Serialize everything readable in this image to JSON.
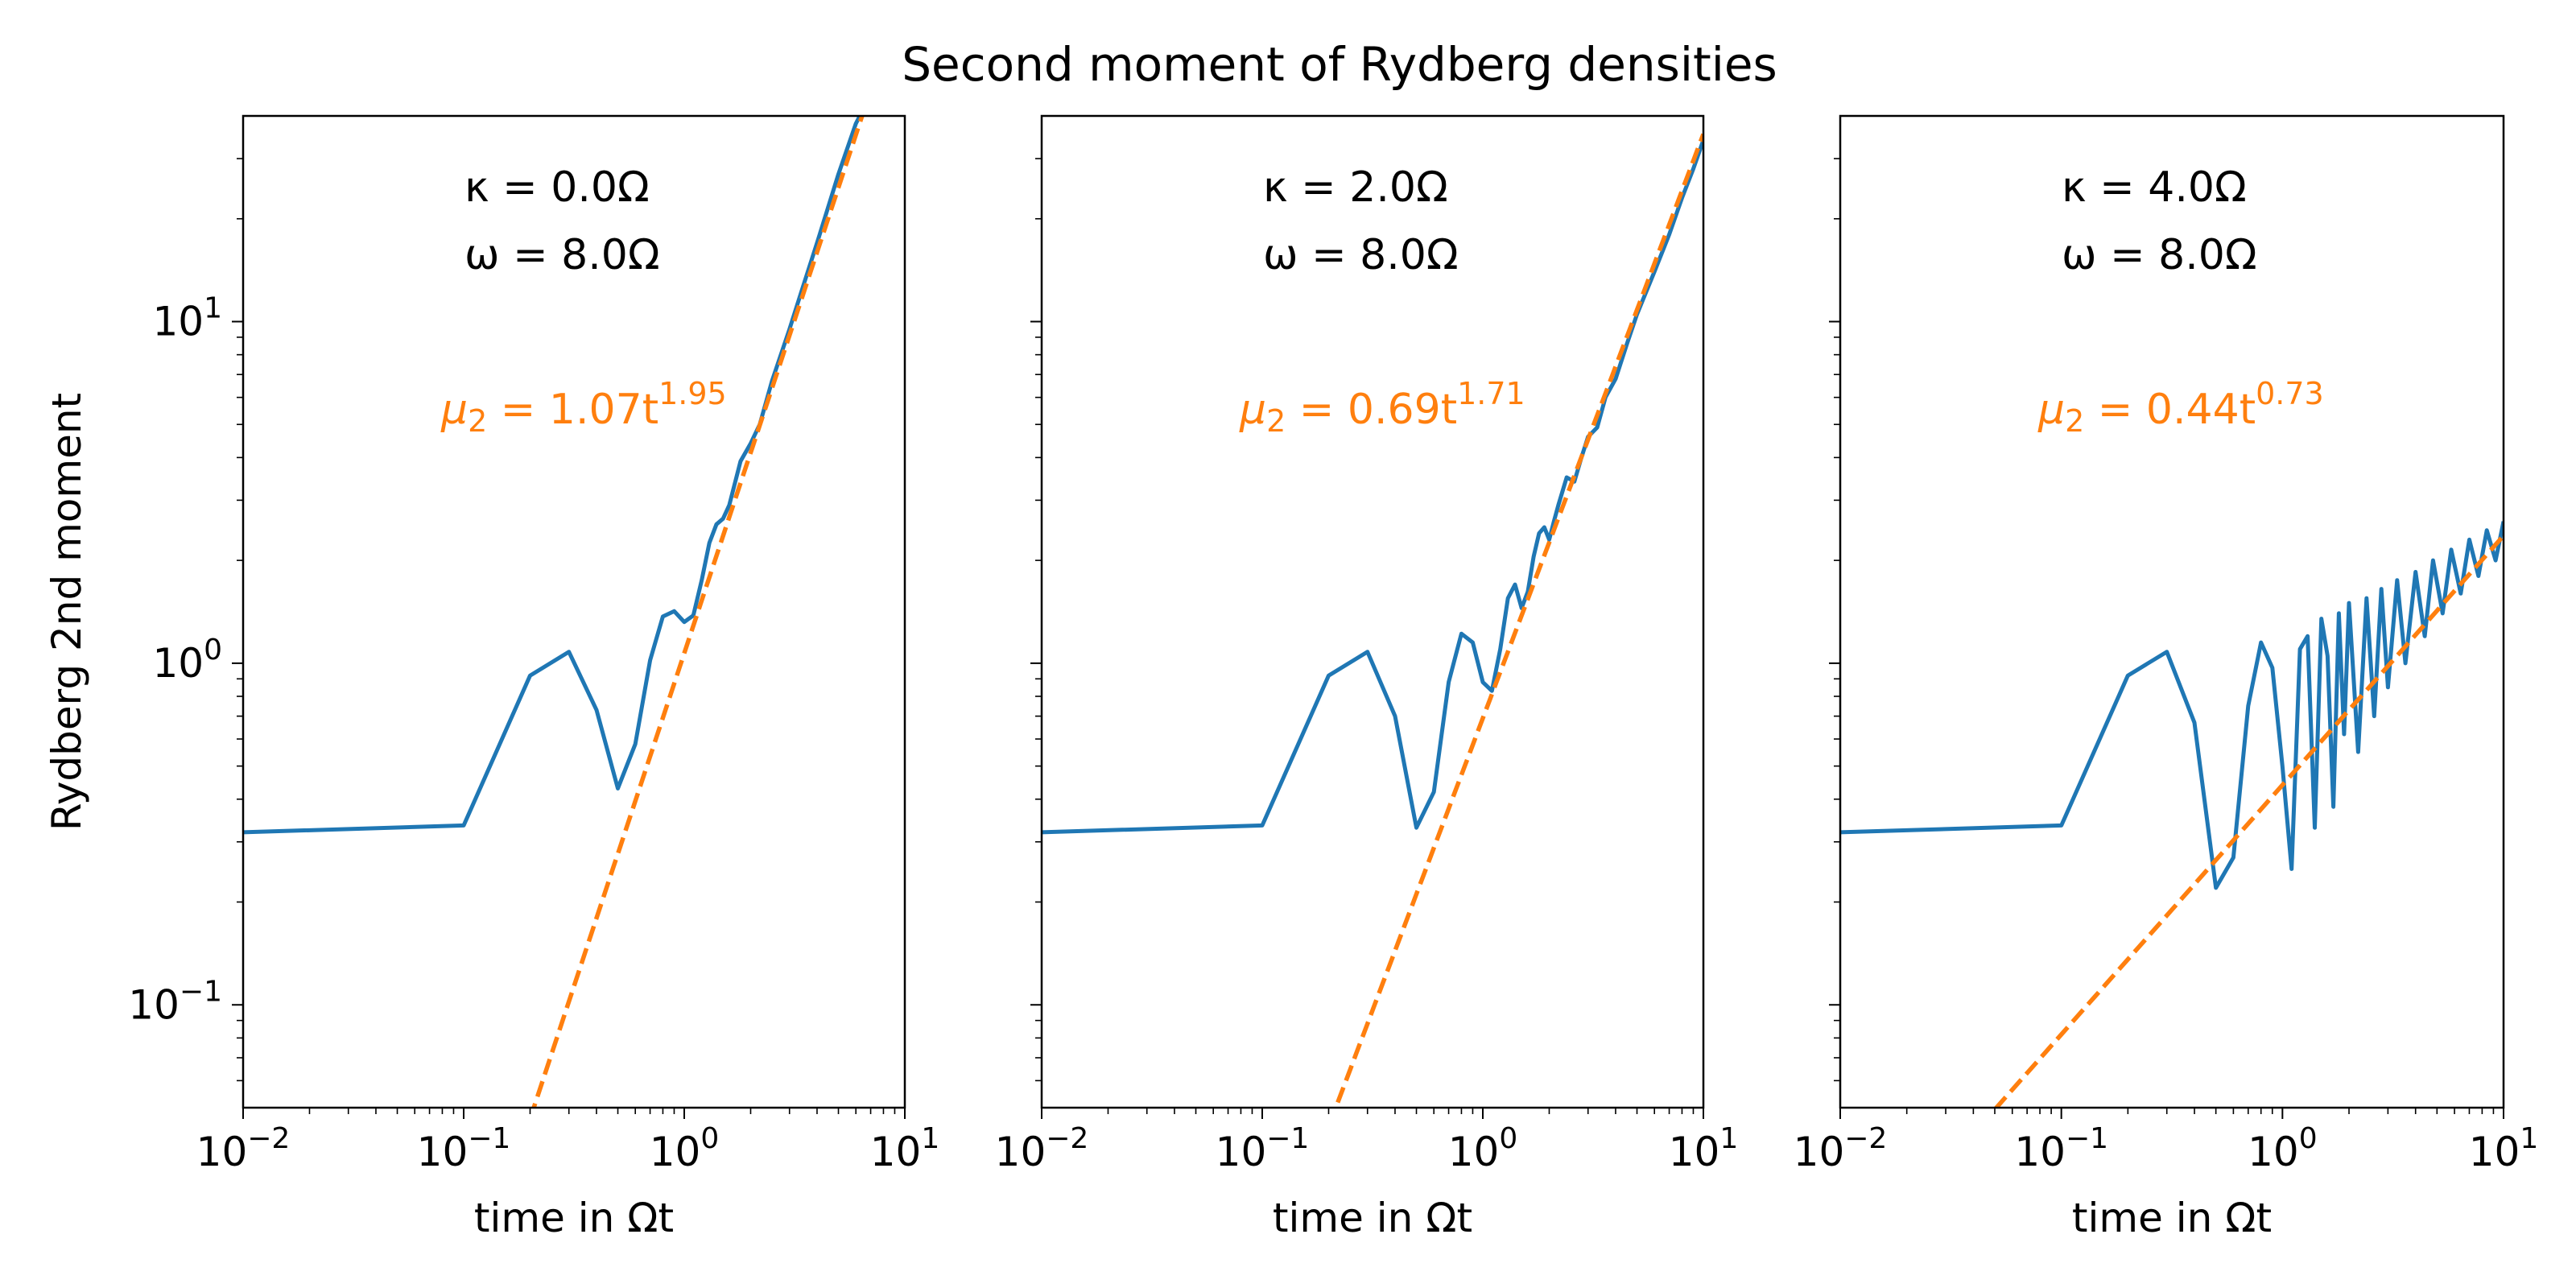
{
  "title": "Second moment of Rydberg densities",
  "colors": {
    "data": "#1f77b4",
    "fit": "#ff7f0e",
    "text": "#000000"
  },
  "chart_data": [
    {
      "type": "line",
      "xscale": "log",
      "yscale": "log",
      "xlim": [
        0.01,
        10
      ],
      "ylim": [
        0.05,
        40
      ],
      "xlabel": "time in Ωt",
      "ylabel": "Rydberg 2nd moment",
      "xticks": [
        {
          "base": "10",
          "exp": "−2"
        },
        {
          "base": "10",
          "exp": "−1"
        },
        {
          "base": "10",
          "exp": "0"
        },
        {
          "base": "10",
          "exp": "1"
        }
      ],
      "yticks": [
        {
          "base": "10",
          "exp": "−1"
        },
        {
          "base": "10",
          "exp": "0"
        },
        {
          "base": "10",
          "exp": "1"
        }
      ],
      "annotation": {
        "kappa": "κ = 0.0Ω",
        "omega": "ω = 8.0Ω"
      },
      "fit": {
        "label_prefix": "μ",
        "label_sub": "2",
        "label_mid": " = 1.07t",
        "label_exp": "1.95",
        "a": 1.07,
        "b": 1.95,
        "x_range": [
          0.2,
          6.5
        ]
      },
      "series": [
        {
          "style": "solid",
          "x": [
            0.01,
            0.1,
            0.2,
            0.3,
            0.4,
            0.5,
            0.6,
            0.7,
            0.8,
            0.9,
            1.0,
            1.1,
            1.2,
            1.3,
            1.4,
            1.5,
            1.6,
            1.8,
            2.0,
            2.2,
            2.5,
            3.0,
            3.5,
            4.0,
            5.0,
            6.0,
            6.5
          ],
          "y": [
            0.32,
            0.335,
            0.92,
            1.08,
            0.73,
            0.43,
            0.58,
            1.02,
            1.37,
            1.42,
            1.32,
            1.38,
            1.75,
            2.25,
            2.55,
            2.65,
            2.9,
            3.9,
            4.4,
            5.0,
            6.7,
            9.5,
            13,
            17,
            27,
            38,
            42
          ]
        }
      ]
    },
    {
      "type": "line",
      "xscale": "log",
      "yscale": "log",
      "xlim": [
        0.01,
        10
      ],
      "ylim": [
        0.05,
        40
      ],
      "xlabel": "time in Ωt",
      "ylabel": "",
      "xticks": [
        {
          "base": "10",
          "exp": "−2"
        },
        {
          "base": "10",
          "exp": "−1"
        },
        {
          "base": "10",
          "exp": "0"
        },
        {
          "base": "10",
          "exp": "1"
        }
      ],
      "yticks": [],
      "annotation": {
        "kappa": "κ = 2.0Ω",
        "omega": "ω = 8.0Ω"
      },
      "fit": {
        "label_prefix": "μ",
        "label_sub": "2",
        "label_mid": " = 0.69t",
        "label_exp": "1.71",
        "a": 0.69,
        "b": 1.71,
        "x_range": [
          0.22,
          10
        ]
      },
      "series": [
        {
          "style": "solid",
          "x": [
            0.01,
            0.1,
            0.2,
            0.3,
            0.4,
            0.5,
            0.6,
            0.7,
            0.8,
            0.9,
            1.0,
            1.1,
            1.2,
            1.3,
            1.4,
            1.5,
            1.6,
            1.7,
            1.8,
            1.9,
            2.0,
            2.1,
            2.2,
            2.4,
            2.6,
            2.8,
            3.0,
            3.3,
            3.6,
            4.0,
            4.5,
            5.0,
            6.0,
            7.0,
            8.0,
            9.0,
            10.0
          ],
          "y": [
            0.32,
            0.335,
            0.92,
            1.08,
            0.7,
            0.33,
            0.42,
            0.88,
            1.22,
            1.15,
            0.88,
            0.83,
            1.1,
            1.55,
            1.7,
            1.45,
            1.62,
            2.05,
            2.4,
            2.5,
            2.3,
            2.6,
            2.9,
            3.5,
            3.4,
            4.0,
            4.6,
            4.9,
            6.0,
            6.8,
            8.6,
            10.5,
            14,
            18,
            23,
            28,
            34
          ]
        }
      ]
    },
    {
      "type": "line",
      "xscale": "log",
      "yscale": "log",
      "xlim": [
        0.01,
        10
      ],
      "ylim": [
        0.05,
        40
      ],
      "xlabel": "time in Ωt",
      "ylabel": "",
      "xticks": [
        {
          "base": "10",
          "exp": "−2"
        },
        {
          "base": "10",
          "exp": "−1"
        },
        {
          "base": "10",
          "exp": "0"
        },
        {
          "base": "10",
          "exp": "1"
        }
      ],
      "yticks": [],
      "annotation": {
        "kappa": "κ = 4.0Ω",
        "omega": "ω = 8.0Ω"
      },
      "fit": {
        "label_prefix": "μ",
        "label_sub": "2",
        "label_mid": " = 0.44t",
        "label_exp": "0.73",
        "a": 0.44,
        "b": 0.73,
        "x_range": [
          0.01,
          10
        ]
      },
      "series": [
        {
          "style": "solid",
          "x": [
            0.01,
            0.1,
            0.2,
            0.3,
            0.4,
            0.5,
            0.6,
            0.7,
            0.8,
            0.9,
            1.0,
            1.1,
            1.2,
            1.3,
            1.4,
            1.5,
            1.6,
            1.7,
            1.8,
            1.9,
            2.0,
            2.2,
            2.4,
            2.6,
            2.8,
            3.0,
            3.3,
            3.6,
            4.0,
            4.4,
            4.8,
            5.3,
            5.8,
            6.4,
            7.0,
            7.7,
            8.4,
            9.2,
            10.0
          ],
          "y": [
            0.32,
            0.335,
            0.92,
            1.08,
            0.67,
            0.22,
            0.27,
            0.75,
            1.15,
            0.97,
            0.5,
            0.25,
            1.1,
            1.2,
            0.33,
            1.35,
            1.05,
            0.38,
            1.4,
            0.62,
            1.5,
            0.55,
            1.55,
            0.7,
            1.65,
            0.85,
            1.75,
            1.0,
            1.85,
            1.2,
            2.0,
            1.4,
            2.15,
            1.6,
            2.3,
            1.8,
            2.45,
            2.0,
            2.6
          ]
        }
      ]
    }
  ]
}
